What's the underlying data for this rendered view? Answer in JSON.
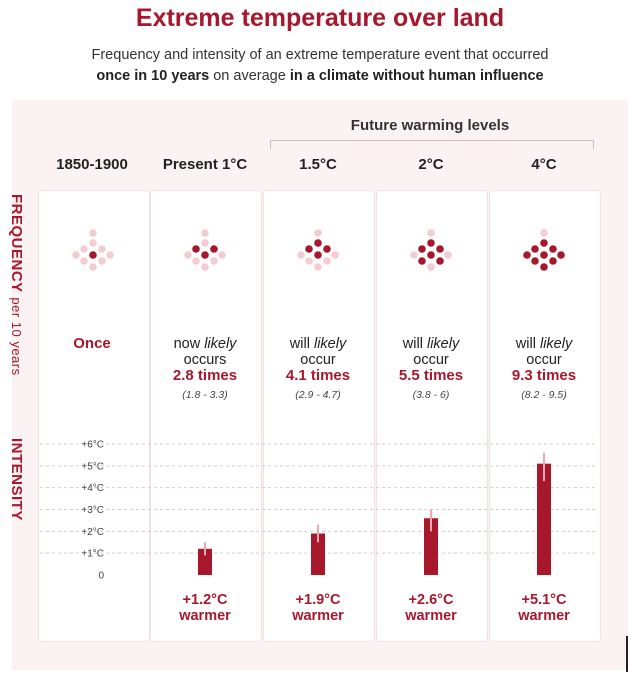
{
  "title": "Extreme temperature over land",
  "subtitle": {
    "line1": "Frequency and intensity of an extreme temperature event that occurred",
    "line2_bold1": "once in 10 years",
    "line2_mid": " on average ",
    "line2_bold2": "in a climate without human influence"
  },
  "future_label": "Future warming levels",
  "axis_labels": {
    "frequency_bold": "FREQUENCY",
    "frequency_rest": "per 10 years",
    "intensity": "INTENSITY"
  },
  "columns": [
    {
      "header": "1850-1900",
      "freq_once": "Once",
      "freq_l1": "",
      "freq_l1_italic": "",
      "freq_l2": "",
      "times": "",
      "range": "",
      "warm_value": "",
      "warm_word": ""
    },
    {
      "header": "Present 1°C",
      "freq_l1": "now ",
      "freq_l1_italic": "likely",
      "freq_l2": "occurs",
      "times": "2.8 times",
      "range": "(1.8 - 3.3)",
      "warm_value": "+1.2°C",
      "warm_word": "warmer"
    },
    {
      "header": "1.5°C",
      "freq_l1": "will ",
      "freq_l1_italic": "likely",
      "freq_l2": "occur",
      "times": "4.1 times",
      "range": "(2.9 - 4.7)",
      "warm_value": "+1.9°C",
      "warm_word": "warmer"
    },
    {
      "header": "2°C",
      "freq_l1": "will ",
      "freq_l1_italic": "likely",
      "freq_l2": "occur",
      "times": "5.5 times",
      "range": "(3.8 - 6)",
      "warm_value": "+2.6°C",
      "warm_word": "warmer"
    },
    {
      "header": "4°C",
      "freq_l1": "will ",
      "freq_l1_italic": "likely",
      "freq_l2": "occur",
      "times": "9.3 times",
      "range": "(8.2 - 9.5)",
      "warm_value": "+5.1°C",
      "warm_word": "warmer"
    }
  ],
  "colors": {
    "accent": "#a8182c",
    "dot_light": "#f4cdd3",
    "background_panel": "#fbf3f3"
  },
  "chart_data": [
    {
      "type": "dot-matrix",
      "categories": [
        "1850-1900",
        "Present 1°C",
        "1.5°C",
        "2°C",
        "4°C"
      ],
      "values": [
        1,
        2.8,
        4.1,
        5.5,
        9.3
      ],
      "ranges": [
        [
          1,
          1
        ],
        [
          1.8,
          3.3
        ],
        [
          2.9,
          4.7
        ],
        [
          3.8,
          6
        ],
        [
          8.2,
          9.5
        ]
      ],
      "total_dots": 10
    },
    {
      "type": "bar",
      "categories": [
        "1850-1900",
        "Present 1°C",
        "1.5°C",
        "2°C",
        "4°C"
      ],
      "values": [
        0,
        1.2,
        1.9,
        2.6,
        5.1
      ],
      "error_ranges": [
        null,
        [
          0.9,
          1.5
        ],
        [
          1.5,
          2.3
        ],
        [
          2.0,
          3.0
        ],
        [
          4.3,
          5.6
        ]
      ],
      "ylim": [
        0,
        6
      ],
      "yticks": [
        "0",
        "+1°C",
        "+2°C",
        "+3°C",
        "+4°C",
        "+5°C",
        "+6°C"
      ],
      "grid": true
    }
  ]
}
